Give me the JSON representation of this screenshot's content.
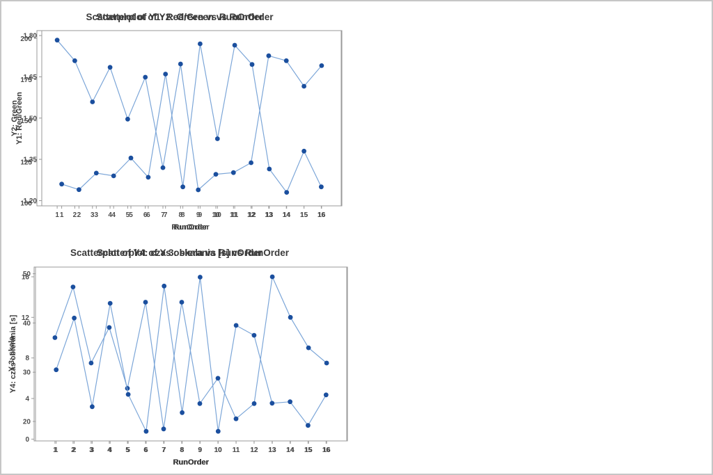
{
  "window": {
    "background_color": "#ffffff",
    "border_color": "#c6c6c6"
  },
  "colors": {
    "marker": "#1b4f9e",
    "line": "#7ca6d8",
    "frame": "#9a9a9a",
    "title_text": "#3a3a3a",
    "tick_text": "#4c4c4c"
  },
  "chart_data": [
    {
      "type": "scatter",
      "id": "scatterplot-y1-red-green",
      "title": "Scatterplot of Y1: Red/Green vs RunOrder",
      "xlabel": "RunOrder",
      "ylabel": "Y1: Red/Green",
      "x": [
        1,
        2,
        3,
        4,
        5,
        6,
        7,
        8,
        9,
        10,
        11,
        12,
        13,
        14,
        15,
        16
      ],
      "y": [
        1.26,
        1.24,
        1.3,
        1.29,
        1.355,
        1.285,
        1.66,
        1.25,
        1.77,
        1.425,
        1.765,
        1.695,
        1.315,
        1.23,
        1.38,
        1.25
      ],
      "y_ticks": [
        {
          "value": 1.8,
          "label": "1,80"
        },
        {
          "value": 1.65,
          "label": "1,65"
        },
        {
          "value": 1.5,
          "label": "1,50"
        },
        {
          "value": 1.35,
          "label": "1,35"
        },
        {
          "value": 1.2,
          "label": "1,20"
        }
      ],
      "ylim": [
        1.181,
        1.818
      ],
      "xlim": [
        -0.15,
        17.15
      ],
      "grid": false,
      "legend": "none",
      "connected": true
    },
    {
      "type": "scatter",
      "id": "scatterplot-y2-green",
      "title": "Scatterplot of Y2: Green vs RunOrder",
      "xlabel": "RunOrder",
      "ylabel": "Y2: Green",
      "x": [
        1,
        2,
        3,
        4,
        5,
        6,
        7,
        8,
        9,
        10,
        11,
        12,
        13,
        14,
        15,
        16
      ],
      "y": [
        199,
        186.5,
        161.5,
        182.5,
        151,
        176.5,
        121.5,
        184.5,
        108,
        117.5,
        118.5,
        124.5,
        189.5,
        186.5,
        171,
        183.5
      ],
      "y_ticks": [
        {
          "value": 200,
          "label": "200"
        },
        {
          "value": 175,
          "label": "175"
        },
        {
          "value": 150,
          "label": "150"
        },
        {
          "value": 125,
          "label": "125"
        },
        {
          "value": 100,
          "label": "100"
        }
      ],
      "ylim": [
        98.3,
        204.8
      ],
      "xlim": [
        -0.15,
        17.15
      ],
      "grid": false,
      "legend": "none",
      "connected": true
    },
    {
      "type": "scatter",
      "id": "scatterplot-y3-skala",
      "title": "Scatterplot of Y 3: skala vs RunOrder",
      "xlabel": "RunOrder",
      "ylabel": "Y 3: skala",
      "x": [
        1,
        2,
        3,
        4,
        5,
        6,
        7,
        8,
        9,
        10,
        11,
        12,
        13,
        14,
        15,
        16
      ],
      "y": [
        10,
        15,
        7.5,
        11,
        5,
        13.5,
        1,
        13.5,
        3.5,
        6,
        2,
        3.5,
        16,
        12,
        9,
        7.5
      ],
      "y_ticks": [
        {
          "value": 16,
          "label": "16"
        },
        {
          "value": 12,
          "label": "12"
        },
        {
          "value": 8,
          "label": "8"
        },
        {
          "value": 4,
          "label": "4"
        },
        {
          "value": 0,
          "label": "0"
        }
      ],
      "ylim": [
        -0.18,
        16.96
      ],
      "xlim": [
        -0.15,
        17.15
      ],
      "grid": false,
      "legend": "none",
      "connected": true
    },
    {
      "type": "scatter",
      "id": "scatterplot-y4-czas-obierania",
      "title": "Scatterplot of Y4: czas obierania [s] vs RunOrder",
      "xlabel": "RunOrder",
      "ylabel": "Y4: czas obierania [s]",
      "x": [
        1,
        2,
        3,
        4,
        5,
        6,
        7,
        8,
        9,
        10,
        11,
        12,
        13,
        14,
        15,
        16
      ],
      "y": [
        30.5,
        41,
        23,
        44,
        25.5,
        18,
        47.5,
        21.8,
        49.3,
        18,
        39.5,
        37.5,
        23.7,
        24,
        19.2,
        25.4
      ],
      "y_ticks": [
        {
          "value": 50,
          "label": "50"
        },
        {
          "value": 40,
          "label": "40"
        },
        {
          "value": 30,
          "label": "30"
        },
        {
          "value": 20,
          "label": "20"
        }
      ],
      "ylim": [
        16.05,
        51.35
      ],
      "xlim": [
        -0.15,
        17.15
      ],
      "grid": false,
      "legend": "none",
      "connected": true
    }
  ]
}
